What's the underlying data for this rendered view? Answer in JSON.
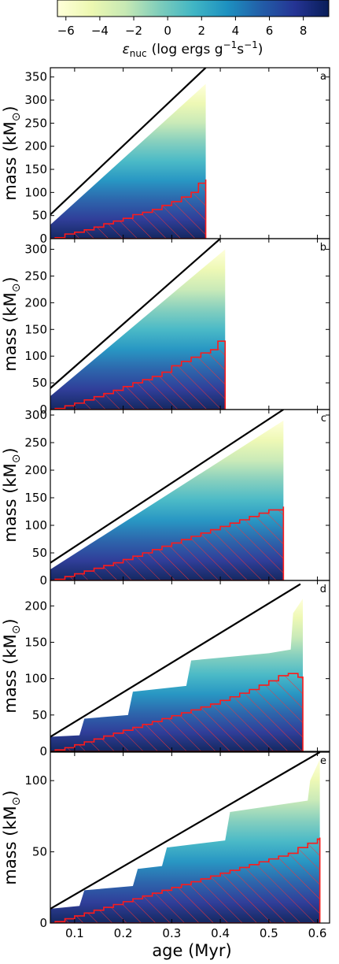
{
  "colorbar": {
    "label_main": "ε",
    "label_sub": "nuc",
    "label_rest": "(log ergs g",
    "label_exp1": "−1",
    "label_mid": "s",
    "label_exp2": "−1",
    "label_close": ")",
    "range": [
      -6.5,
      9.5
    ],
    "ticks": [
      "−6",
      "−4",
      "−2",
      "0",
      "2",
      "4",
      "6",
      "8"
    ],
    "tick_values": [
      -6,
      -4,
      -2,
      0,
      2,
      4,
      6,
      8
    ],
    "colormap": "YlGnBu",
    "colors": [
      "#ffffd9",
      "#edf8b1",
      "#c7e9b4",
      "#7fcdbb",
      "#41b6c4",
      "#1d91c0",
      "#225ea8",
      "#253494",
      "#081d58"
    ]
  },
  "xaxis": {
    "label": "age (Myr)",
    "range": [
      0.05,
      0.625
    ],
    "ticks": [
      "0.1",
      "0.2",
      "0.3",
      "0.4",
      "0.5",
      "0.6"
    ],
    "tick_values": [
      0.1,
      0.2,
      0.3,
      0.4,
      0.5,
      0.6
    ]
  },
  "ylabel": {
    "main": "mass (kM",
    "sub": "⊙",
    "close": ")"
  },
  "chart_data": [
    {
      "type": "area",
      "panel": "a",
      "ylim": [
        0,
        370
      ],
      "yticks": [
        0,
        50,
        100,
        150,
        200,
        250,
        300,
        350
      ],
      "end_age": 0.37,
      "envelope": [
        [
          0.05,
          30
        ],
        [
          0.37,
          335
        ]
      ],
      "line": [
        [
          0.05,
          52
        ],
        [
          0.37,
          370
        ]
      ],
      "core_steps": [
        [
          0.06,
          2
        ],
        [
          0.08,
          10
        ],
        [
          0.1,
          14
        ],
        [
          0.12,
          19
        ],
        [
          0.14,
          25
        ],
        [
          0.16,
          32
        ],
        [
          0.18,
          38
        ],
        [
          0.2,
          44
        ],
        [
          0.22,
          52
        ],
        [
          0.24,
          57
        ],
        [
          0.26,
          63
        ],
        [
          0.28,
          72
        ],
        [
          0.3,
          80
        ],
        [
          0.32,
          90
        ],
        [
          0.34,
          100
        ],
        [
          0.355,
          120
        ],
        [
          0.37,
          128
        ]
      ],
      "grid": false
    },
    {
      "type": "area",
      "panel": "b",
      "ylim": [
        0,
        320
      ],
      "yticks": [
        0,
        50,
        100,
        150,
        200,
        250,
        300
      ],
      "end_age": 0.41,
      "envelope": [
        [
          0.05,
          25
        ],
        [
          0.41,
          300
        ]
      ],
      "line": [
        [
          0.05,
          40
        ],
        [
          0.4,
          320
        ]
      ],
      "core_steps": [
        [
          0.06,
          2
        ],
        [
          0.08,
          7
        ],
        [
          0.1,
          12
        ],
        [
          0.12,
          18
        ],
        [
          0.14,
          24
        ],
        [
          0.16,
          30
        ],
        [
          0.18,
          36
        ],
        [
          0.2,
          43
        ],
        [
          0.22,
          50
        ],
        [
          0.24,
          56
        ],
        [
          0.26,
          62
        ],
        [
          0.28,
          70
        ],
        [
          0.3,
          82
        ],
        [
          0.32,
          90
        ],
        [
          0.34,
          98
        ],
        [
          0.36,
          106
        ],
        [
          0.38,
          112
        ],
        [
          0.395,
          128
        ],
        [
          0.41,
          118
        ]
      ],
      "grid": false
    },
    {
      "type": "area",
      "panel": "c",
      "ylim": [
        0,
        310
      ],
      "yticks": [
        0,
        50,
        100,
        150,
        200,
        250,
        300
      ],
      "end_age": 0.53,
      "envelope": [
        [
          0.05,
          20
        ],
        [
          0.53,
          290
        ]
      ],
      "line": [
        [
          0.05,
          32
        ],
        [
          0.53,
          310
        ]
      ],
      "core_steps": [
        [
          0.06,
          2
        ],
        [
          0.08,
          7
        ],
        [
          0.1,
          12
        ],
        [
          0.12,
          17
        ],
        [
          0.14,
          22
        ],
        [
          0.16,
          27
        ],
        [
          0.18,
          32
        ],
        [
          0.2,
          38
        ],
        [
          0.22,
          44
        ],
        [
          0.24,
          50
        ],
        [
          0.26,
          56
        ],
        [
          0.28,
          62
        ],
        [
          0.3,
          68
        ],
        [
          0.32,
          74
        ],
        [
          0.34,
          80
        ],
        [
          0.36,
          86
        ],
        [
          0.38,
          92
        ],
        [
          0.4,
          98
        ],
        [
          0.42,
          104
        ],
        [
          0.44,
          110
        ],
        [
          0.46,
          116
        ],
        [
          0.48,
          122
        ],
        [
          0.5,
          128
        ],
        [
          0.53,
          134
        ]
      ],
      "grid": false
    },
    {
      "type": "area",
      "panel": "d",
      "ylim": [
        0,
        235
      ],
      "yticks": [
        0,
        50,
        100,
        150,
        200
      ],
      "end_age": 0.57,
      "envelope_steps": [
        [
          0.05,
          20
        ],
        [
          0.11,
          22
        ],
        [
          0.12,
          45
        ],
        [
          0.21,
          50
        ],
        [
          0.22,
          82
        ],
        [
          0.33,
          90
        ],
        [
          0.34,
          125
        ],
        [
          0.5,
          135
        ],
        [
          0.545,
          140
        ],
        [
          0.55,
          190
        ],
        [
          0.57,
          210
        ]
      ],
      "line": [
        [
          0.05,
          20
        ],
        [
          0.565,
          230
        ]
      ],
      "core_steps": [
        [
          0.06,
          2
        ],
        [
          0.08,
          5
        ],
        [
          0.1,
          9
        ],
        [
          0.12,
          13
        ],
        [
          0.14,
          17
        ],
        [
          0.16,
          21
        ],
        [
          0.18,
          25
        ],
        [
          0.2,
          29
        ],
        [
          0.22,
          33
        ],
        [
          0.24,
          37
        ],
        [
          0.26,
          41
        ],
        [
          0.28,
          45
        ],
        [
          0.3,
          49
        ],
        [
          0.32,
          53
        ],
        [
          0.34,
          57
        ],
        [
          0.36,
          61
        ],
        [
          0.38,
          65
        ],
        [
          0.4,
          70
        ],
        [
          0.42,
          75
        ],
        [
          0.44,
          80
        ],
        [
          0.46,
          85
        ],
        [
          0.48,
          91
        ],
        [
          0.5,
          97
        ],
        [
          0.52,
          104
        ],
        [
          0.54,
          107
        ],
        [
          0.56,
          102
        ],
        [
          0.57,
          102
        ]
      ],
      "grid": false
    },
    {
      "type": "area",
      "panel": "e",
      "ylim": [
        0,
        120
      ],
      "yticks": [
        0,
        50,
        100
      ],
      "end_age": 0.605,
      "envelope_steps": [
        [
          0.05,
          10
        ],
        [
          0.11,
          12
        ],
        [
          0.12,
          23
        ],
        [
          0.22,
          26
        ],
        [
          0.23,
          38
        ],
        [
          0.28,
          40
        ],
        [
          0.29,
          53
        ],
        [
          0.41,
          58
        ],
        [
          0.42,
          78
        ],
        [
          0.58,
          86
        ],
        [
          0.585,
          100
        ],
        [
          0.605,
          115
        ]
      ],
      "line": [
        [
          0.05,
          10
        ],
        [
          0.605,
          120
        ]
      ],
      "core_steps": [
        [
          0.06,
          1
        ],
        [
          0.08,
          3
        ],
        [
          0.1,
          5
        ],
        [
          0.12,
          7
        ],
        [
          0.14,
          9
        ],
        [
          0.16,
          11
        ],
        [
          0.18,
          13
        ],
        [
          0.2,
          15
        ],
        [
          0.22,
          17
        ],
        [
          0.24,
          19
        ],
        [
          0.26,
          21
        ],
        [
          0.28,
          23
        ],
        [
          0.3,
          25
        ],
        [
          0.32,
          27
        ],
        [
          0.34,
          29
        ],
        [
          0.36,
          31
        ],
        [
          0.38,
          33
        ],
        [
          0.4,
          35
        ],
        [
          0.42,
          37
        ],
        [
          0.44,
          39
        ],
        [
          0.46,
          41
        ],
        [
          0.48,
          43
        ],
        [
          0.5,
          45
        ],
        [
          0.52,
          47
        ],
        [
          0.54,
          49
        ],
        [
          0.56,
          53
        ],
        [
          0.58,
          56
        ],
        [
          0.6,
          59
        ],
        [
          0.605,
          60
        ]
      ],
      "grid": false
    }
  ]
}
